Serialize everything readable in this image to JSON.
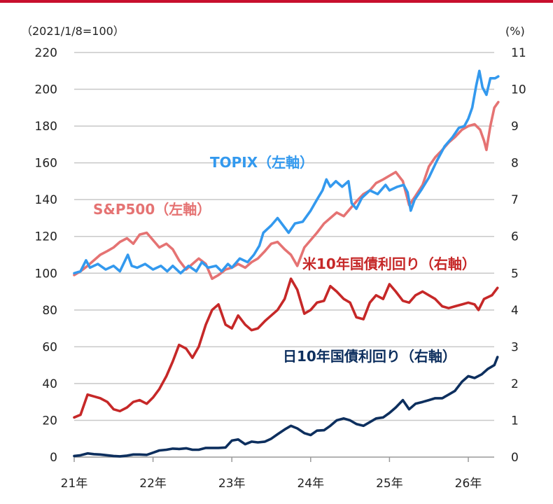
{
  "chart_data": {
    "type": "line",
    "left_axis_unit": "（2021/1/8=100）",
    "right_axis_unit": "(%)",
    "left_ylim": [
      0,
      220
    ],
    "left_ticks": [
      "0",
      "20",
      "40",
      "60",
      "80",
      "100",
      "120",
      "140",
      "160",
      "180",
      "200",
      "220"
    ],
    "right_ylim": [
      0,
      11
    ],
    "right_ticks": [
      "0",
      "1",
      "2",
      "3",
      "4",
      "5",
      "6",
      "7",
      "8",
      "9",
      "10",
      "11"
    ],
    "xlim": [
      2021.0,
      2026.42
    ],
    "x_ticks": [
      {
        "x": 2021,
        "label": "21年"
      },
      {
        "x": 2022,
        "label": "22年"
      },
      {
        "x": 2023,
        "label": "23年"
      },
      {
        "x": 2024,
        "label": "24年"
      },
      {
        "x": 2025,
        "label": "25年"
      },
      {
        "x": 2026,
        "label": "26年"
      }
    ],
    "grid": true,
    "series": [
      {
        "name": "TOPIX（左軸）",
        "axis": "left",
        "color": "#3399ee",
        "points": [
          [
            2021.0,
            100
          ],
          [
            2021.08,
            101
          ],
          [
            2021.15,
            107
          ],
          [
            2021.2,
            103
          ],
          [
            2021.3,
            105
          ],
          [
            2021.4,
            102
          ],
          [
            2021.5,
            104
          ],
          [
            2021.58,
            101
          ],
          [
            2021.68,
            110
          ],
          [
            2021.73,
            104
          ],
          [
            2021.8,
            103
          ],
          [
            2021.9,
            105
          ],
          [
            2022.0,
            102
          ],
          [
            2022.1,
            104
          ],
          [
            2022.18,
            101
          ],
          [
            2022.25,
            104
          ],
          [
            2022.35,
            100
          ],
          [
            2022.45,
            104
          ],
          [
            2022.55,
            101
          ],
          [
            2022.62,
            106
          ],
          [
            2022.7,
            103
          ],
          [
            2022.8,
            104
          ],
          [
            2022.87,
            101
          ],
          [
            2022.95,
            105
          ],
          [
            2023.0,
            103
          ],
          [
            2023.1,
            108
          ],
          [
            2023.2,
            106
          ],
          [
            2023.28,
            110
          ],
          [
            2023.35,
            115
          ],
          [
            2023.4,
            122
          ],
          [
            2023.5,
            126
          ],
          [
            2023.58,
            130
          ],
          [
            2023.65,
            126
          ],
          [
            2023.72,
            122
          ],
          [
            2023.8,
            127
          ],
          [
            2023.9,
            128
          ],
          [
            2024.0,
            134
          ],
          [
            2024.08,
            140
          ],
          [
            2024.15,
            145
          ],
          [
            2024.2,
            151
          ],
          [
            2024.25,
            147
          ],
          [
            2024.32,
            150
          ],
          [
            2024.4,
            147
          ],
          [
            2024.48,
            150
          ],
          [
            2024.52,
            138
          ],
          [
            2024.58,
            135
          ],
          [
            2024.65,
            141
          ],
          [
            2024.75,
            145
          ],
          [
            2024.85,
            143
          ],
          [
            2024.95,
            148
          ],
          [
            2025.0,
            145
          ],
          [
            2025.1,
            147
          ],
          [
            2025.18,
            148
          ],
          [
            2025.23,
            144
          ],
          [
            2025.27,
            134
          ],
          [
            2025.32,
            140
          ],
          [
            2025.4,
            145
          ],
          [
            2025.5,
            152
          ],
          [
            2025.6,
            161
          ],
          [
            2025.7,
            169
          ],
          [
            2025.8,
            174
          ],
          [
            2025.88,
            179
          ],
          [
            2025.95,
            180
          ],
          [
            2026.0,
            184
          ],
          [
            2026.05,
            190
          ],
          [
            2026.1,
            202
          ],
          [
            2026.14,
            210
          ],
          [
            2026.18,
            201
          ],
          [
            2026.23,
            197
          ],
          [
            2026.28,
            206
          ],
          [
            2026.34,
            206
          ],
          [
            2026.38,
            207
          ]
        ]
      },
      {
        "name": "S&P500（左軸）",
        "axis": "left",
        "color": "#e57373",
        "points": [
          [
            2021.0,
            99
          ],
          [
            2021.08,
            101
          ],
          [
            2021.17,
            104
          ],
          [
            2021.25,
            107
          ],
          [
            2021.33,
            110
          ],
          [
            2021.42,
            112
          ],
          [
            2021.5,
            114
          ],
          [
            2021.58,
            117
          ],
          [
            2021.67,
            119
          ],
          [
            2021.75,
            116
          ],
          [
            2021.83,
            121
          ],
          [
            2021.92,
            122
          ],
          [
            2022.0,
            118
          ],
          [
            2022.08,
            114
          ],
          [
            2022.17,
            116
          ],
          [
            2022.25,
            113
          ],
          [
            2022.33,
            107
          ],
          [
            2022.42,
            102
          ],
          [
            2022.5,
            105
          ],
          [
            2022.58,
            108
          ],
          [
            2022.67,
            105
          ],
          [
            2022.75,
            97
          ],
          [
            2022.83,
            99
          ],
          [
            2022.92,
            102
          ],
          [
            2023.0,
            103
          ],
          [
            2023.08,
            105
          ],
          [
            2023.17,
            103
          ],
          [
            2023.25,
            106
          ],
          [
            2023.33,
            108
          ],
          [
            2023.42,
            112
          ],
          [
            2023.5,
            116
          ],
          [
            2023.58,
            117
          ],
          [
            2023.67,
            113
          ],
          [
            2023.75,
            110
          ],
          [
            2023.83,
            104
          ],
          [
            2023.92,
            114
          ],
          [
            2024.0,
            118
          ],
          [
            2024.08,
            122
          ],
          [
            2024.17,
            127
          ],
          [
            2024.25,
            130
          ],
          [
            2024.33,
            133
          ],
          [
            2024.42,
            131
          ],
          [
            2024.5,
            135
          ],
          [
            2024.58,
            139
          ],
          [
            2024.67,
            143
          ],
          [
            2024.75,
            145
          ],
          [
            2024.83,
            149
          ],
          [
            2024.92,
            151
          ],
          [
            2025.0,
            153
          ],
          [
            2025.08,
            155
          ],
          [
            2025.17,
            150
          ],
          [
            2025.25,
            137
          ],
          [
            2025.33,
            142
          ],
          [
            2025.42,
            148
          ],
          [
            2025.5,
            158
          ],
          [
            2025.58,
            163
          ],
          [
            2025.67,
            167
          ],
          [
            2025.75,
            171
          ],
          [
            2025.83,
            174
          ],
          [
            2025.92,
            178
          ],
          [
            2026.0,
            180
          ],
          [
            2026.08,
            181
          ],
          [
            2026.15,
            178
          ],
          [
            2026.2,
            172
          ],
          [
            2026.23,
            167
          ],
          [
            2026.28,
            180
          ],
          [
            2026.33,
            190
          ],
          [
            2026.38,
            193
          ]
        ]
      },
      {
        "name": "米10年国債利回り（右軸）",
        "axis": "right",
        "color": "#c62828",
        "points": [
          [
            2021.0,
            1.08
          ],
          [
            2021.08,
            1.15
          ],
          [
            2021.17,
            1.7
          ],
          [
            2021.25,
            1.65
          ],
          [
            2021.33,
            1.6
          ],
          [
            2021.42,
            1.5
          ],
          [
            2021.5,
            1.3
          ],
          [
            2021.58,
            1.25
          ],
          [
            2021.67,
            1.35
          ],
          [
            2021.75,
            1.5
          ],
          [
            2021.83,
            1.55
          ],
          [
            2021.92,
            1.45
          ],
          [
            2022.0,
            1.62
          ],
          [
            2022.08,
            1.85
          ],
          [
            2022.17,
            2.2
          ],
          [
            2022.25,
            2.6
          ],
          [
            2022.33,
            3.05
          ],
          [
            2022.42,
            2.95
          ],
          [
            2022.5,
            2.7
          ],
          [
            2022.58,
            3.0
          ],
          [
            2022.67,
            3.6
          ],
          [
            2022.75,
            4.0
          ],
          [
            2022.83,
            4.15
          ],
          [
            2022.92,
            3.6
          ],
          [
            2023.0,
            3.5
          ],
          [
            2023.08,
            3.85
          ],
          [
            2023.17,
            3.6
          ],
          [
            2023.25,
            3.45
          ],
          [
            2023.33,
            3.5
          ],
          [
            2023.42,
            3.7
          ],
          [
            2023.5,
            3.85
          ],
          [
            2023.58,
            4.0
          ],
          [
            2023.67,
            4.3
          ],
          [
            2023.75,
            4.85
          ],
          [
            2023.83,
            4.55
          ],
          [
            2023.92,
            3.9
          ],
          [
            2024.0,
            4.0
          ],
          [
            2024.08,
            4.2
          ],
          [
            2024.17,
            4.25
          ],
          [
            2024.25,
            4.65
          ],
          [
            2024.33,
            4.5
          ],
          [
            2024.42,
            4.3
          ],
          [
            2024.5,
            4.2
          ],
          [
            2024.58,
            3.8
          ],
          [
            2024.67,
            3.75
          ],
          [
            2024.75,
            4.2
          ],
          [
            2024.83,
            4.4
          ],
          [
            2024.92,
            4.3
          ],
          [
            2025.0,
            4.7
          ],
          [
            2025.08,
            4.5
          ],
          [
            2025.17,
            4.25
          ],
          [
            2025.25,
            4.2
          ],
          [
            2025.33,
            4.4
          ],
          [
            2025.42,
            4.5
          ],
          [
            2025.5,
            4.4
          ],
          [
            2025.58,
            4.3
          ],
          [
            2025.67,
            4.1
          ],
          [
            2025.75,
            4.05
          ],
          [
            2025.83,
            4.1
          ],
          [
            2025.92,
            4.15
          ],
          [
            2026.0,
            4.2
          ],
          [
            2026.08,
            4.15
          ],
          [
            2026.13,
            4.0
          ],
          [
            2026.2,
            4.3
          ],
          [
            2026.3,
            4.4
          ],
          [
            2026.37,
            4.6
          ]
        ]
      },
      {
        "name": "日10年国債利回り（右軸）",
        "axis": "right",
        "color": "#0d2f5e",
        "points": [
          [
            2021.0,
            0.03
          ],
          [
            2021.08,
            0.05
          ],
          [
            2021.17,
            0.1
          ],
          [
            2021.25,
            0.08
          ],
          [
            2021.33,
            0.07
          ],
          [
            2021.42,
            0.05
          ],
          [
            2021.5,
            0.03
          ],
          [
            2021.58,
            0.02
          ],
          [
            2021.67,
            0.04
          ],
          [
            2021.75,
            0.07
          ],
          [
            2021.83,
            0.07
          ],
          [
            2021.92,
            0.06
          ],
          [
            2022.0,
            0.12
          ],
          [
            2022.08,
            0.18
          ],
          [
            2022.17,
            0.2
          ],
          [
            2022.25,
            0.23
          ],
          [
            2022.33,
            0.22
          ],
          [
            2022.42,
            0.24
          ],
          [
            2022.5,
            0.2
          ],
          [
            2022.58,
            0.2
          ],
          [
            2022.67,
            0.25
          ],
          [
            2022.75,
            0.25
          ],
          [
            2022.83,
            0.25
          ],
          [
            2022.92,
            0.26
          ],
          [
            2023.0,
            0.45
          ],
          [
            2023.08,
            0.48
          ],
          [
            2023.17,
            0.35
          ],
          [
            2023.25,
            0.42
          ],
          [
            2023.33,
            0.4
          ],
          [
            2023.42,
            0.42
          ],
          [
            2023.5,
            0.5
          ],
          [
            2023.58,
            0.62
          ],
          [
            2023.67,
            0.75
          ],
          [
            2023.75,
            0.85
          ],
          [
            2023.83,
            0.78
          ],
          [
            2023.92,
            0.65
          ],
          [
            2024.0,
            0.6
          ],
          [
            2024.08,
            0.72
          ],
          [
            2024.17,
            0.73
          ],
          [
            2024.25,
            0.85
          ],
          [
            2024.33,
            1.0
          ],
          [
            2024.42,
            1.05
          ],
          [
            2024.5,
            1.0
          ],
          [
            2024.58,
            0.9
          ],
          [
            2024.67,
            0.85
          ],
          [
            2024.75,
            0.95
          ],
          [
            2024.83,
            1.05
          ],
          [
            2024.92,
            1.08
          ],
          [
            2025.0,
            1.2
          ],
          [
            2025.08,
            1.35
          ],
          [
            2025.17,
            1.55
          ],
          [
            2025.25,
            1.3
          ],
          [
            2025.33,
            1.45
          ],
          [
            2025.42,
            1.5
          ],
          [
            2025.5,
            1.55
          ],
          [
            2025.58,
            1.6
          ],
          [
            2025.67,
            1.6
          ],
          [
            2025.75,
            1.7
          ],
          [
            2025.83,
            1.8
          ],
          [
            2025.92,
            2.05
          ],
          [
            2026.0,
            2.2
          ],
          [
            2026.08,
            2.15
          ],
          [
            2026.17,
            2.25
          ],
          [
            2026.25,
            2.4
          ],
          [
            2026.33,
            2.5
          ],
          [
            2026.37,
            2.72
          ]
        ]
      }
    ]
  }
}
